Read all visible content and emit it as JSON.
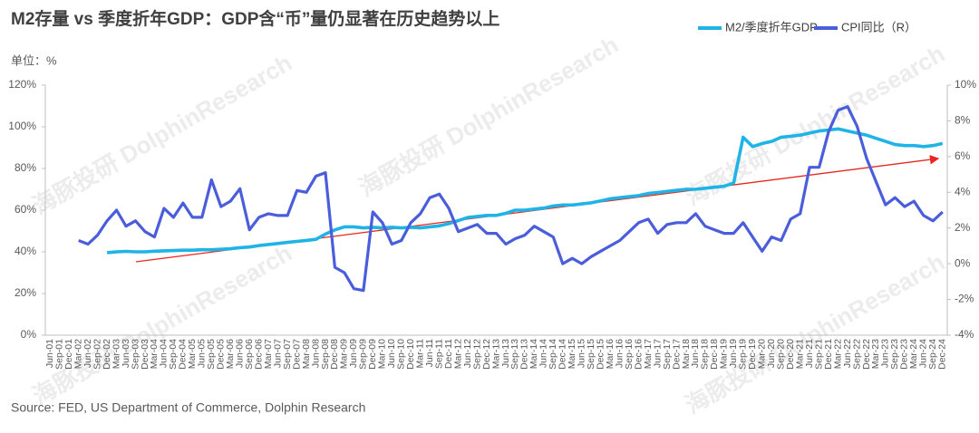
{
  "chart_data": {
    "type": "line",
    "title": "M2存量 vs 季度折年GDP：GDP含“币”量仍显著在历史趋势以上",
    "unit_label": "单位：%",
    "source": "Source: FED, US Department of Commerce, Dolphin Research",
    "watermark": "海豚投研 DolphinResearch",
    "categories": [
      "Jun-01",
      "Sep-01",
      "Dec-01",
      "Mar-02",
      "Jun-02",
      "Sep-02",
      "Dec-02",
      "Mar-03",
      "Jun-03",
      "Sep-03",
      "Dec-03",
      "Mar-04",
      "Jun-04",
      "Sep-04",
      "Dec-04",
      "Mar-05",
      "Jun-05",
      "Sep-05",
      "Dec-05",
      "Mar-06",
      "Jun-06",
      "Sep-06",
      "Dec-06",
      "Mar-07",
      "Jun-07",
      "Sep-07",
      "Dec-07",
      "Mar-08",
      "Jun-08",
      "Sep-08",
      "Dec-08",
      "Mar-09",
      "Jun-09",
      "Sep-09",
      "Dec-09",
      "Mar-10",
      "Jun-10",
      "Sep-10",
      "Dec-10",
      "Mar-11",
      "Jun-11",
      "Sep-11",
      "Dec-11",
      "Mar-12",
      "Jun-12",
      "Sep-12",
      "Dec-12",
      "Mar-13",
      "Jun-13",
      "Sep-13",
      "Dec-13",
      "Mar-14",
      "Jun-14",
      "Sep-14",
      "Dec-14",
      "Mar-15",
      "Jun-15",
      "Sep-15",
      "Dec-15",
      "Mar-16",
      "Jun-16",
      "Sep-16",
      "Dec-16",
      "Mar-17",
      "Jun-17",
      "Sep-17",
      "Dec-17",
      "Mar-18",
      "Jun-18",
      "Sep-18",
      "Dec-18",
      "Mar-19",
      "Jun-19",
      "Sep-19",
      "Dec-19",
      "Mar-20",
      "Jun-20",
      "Sep-20",
      "Dec-20",
      "Mar-21",
      "Jun-21",
      "Sep-21",
      "Dec-21",
      "Mar-22",
      "Jun-22",
      "Sep-22",
      "Dec-22",
      "Mar-23",
      "Jun-23",
      "Sep-23",
      "Dec-23",
      "Mar-24",
      "Jun-24",
      "Sep-24",
      "Dec-24"
    ],
    "series": [
      {
        "name": "M2/季度折年GDP",
        "color": "#1fb3e6",
        "axis": "y",
        "values": [
          null,
          null,
          null,
          null,
          null,
          null,
          39.6,
          40,
          40.2,
          40,
          40,
          40.3,
          40.5,
          40.6,
          40.8,
          40.8,
          41,
          41,
          41.2,
          41.5,
          42,
          42.3,
          43,
          43.5,
          44,
          44.5,
          45,
          45.5,
          46,
          48.5,
          50.5,
          52,
          52,
          51.5,
          51.8,
          51.5,
          51.8,
          51.5,
          51.8,
          51.5,
          52,
          52.5,
          53.5,
          55,
          56.5,
          57,
          57.5,
          57.5,
          58.5,
          60,
          60,
          60.5,
          61,
          62,
          62.5,
          62.5,
          63,
          63.5,
          64.5,
          65.5,
          66,
          66.5,
          67,
          68,
          68.5,
          69,
          69.5,
          70,
          70,
          70.5,
          71,
          71.5,
          73,
          95,
          90.5,
          92,
          93,
          95,
          95.5,
          96,
          97,
          98,
          98.5,
          99,
          98,
          97,
          96,
          94.5,
          93,
          91.5,
          91,
          91,
          90.5,
          91,
          92
        ]
      },
      {
        "name": "CPI同比（R）",
        "color": "#4a5ddb",
        "axis": "y2",
        "values": [
          null,
          null,
          null,
          1.3,
          1.1,
          1.6,
          2.4,
          3.0,
          2.1,
          2.4,
          1.8,
          1.5,
          3.1,
          2.6,
          3.4,
          2.6,
          2.6,
          4.7,
          3.2,
          3.5,
          4.2,
          1.9,
          2.6,
          2.8,
          2.7,
          2.7,
          4.1,
          4.0,
          4.9,
          5.1,
          -0.2,
          -0.5,
          -1.4,
          -1.5,
          2.9,
          2.3,
          1.1,
          1.3,
          2.3,
          2.8,
          3.7,
          3.9,
          3.1,
          1.8,
          2.0,
          2.2,
          1.7,
          1.7,
          1.1,
          1.4,
          1.6,
          2.1,
          1.8,
          1.5,
          0,
          0.3,
          0,
          0.4,
          0.7,
          1.0,
          1.3,
          1.8,
          2.3,
          2.5,
          1.7,
          2.2,
          2.3,
          2.3,
          2.8,
          2.1,
          1.9,
          1.7,
          1.7,
          2.3,
          1.5,
          0.7,
          1.5,
          1.3,
          2.5,
          2.8,
          5.4,
          5.4,
          7.4,
          8.6,
          8.8,
          7.7,
          5.9,
          4.6,
          3.3,
          3.7,
          3.2,
          3.5,
          2.7,
          2.4,
          2.9
        ]
      }
    ],
    "ylim": [
      0,
      120
    ],
    "yticks": [
      {
        "value": 0,
        "label": "0%"
      },
      {
        "value": 20,
        "label": "20%"
      },
      {
        "value": 40,
        "label": "40%"
      },
      {
        "value": 60,
        "label": "60%"
      },
      {
        "value": 80,
        "label": "80%"
      },
      {
        "value": 100,
        "label": "100%"
      },
      {
        "value": 120,
        "label": "120%"
      }
    ],
    "y2lim": [
      -4,
      10
    ],
    "y2ticks": [
      {
        "value": -4,
        "label": "-4%"
      },
      {
        "value": -2,
        "label": "-2%"
      },
      {
        "value": 0,
        "label": "0%"
      },
      {
        "value": 2,
        "label": "2%"
      },
      {
        "value": 4,
        "label": "4%"
      },
      {
        "value": 6,
        "label": "6%"
      },
      {
        "value": 8,
        "label": "8%"
      },
      {
        "value": 10,
        "label": "10%"
      }
    ],
    "grid": false
  }
}
